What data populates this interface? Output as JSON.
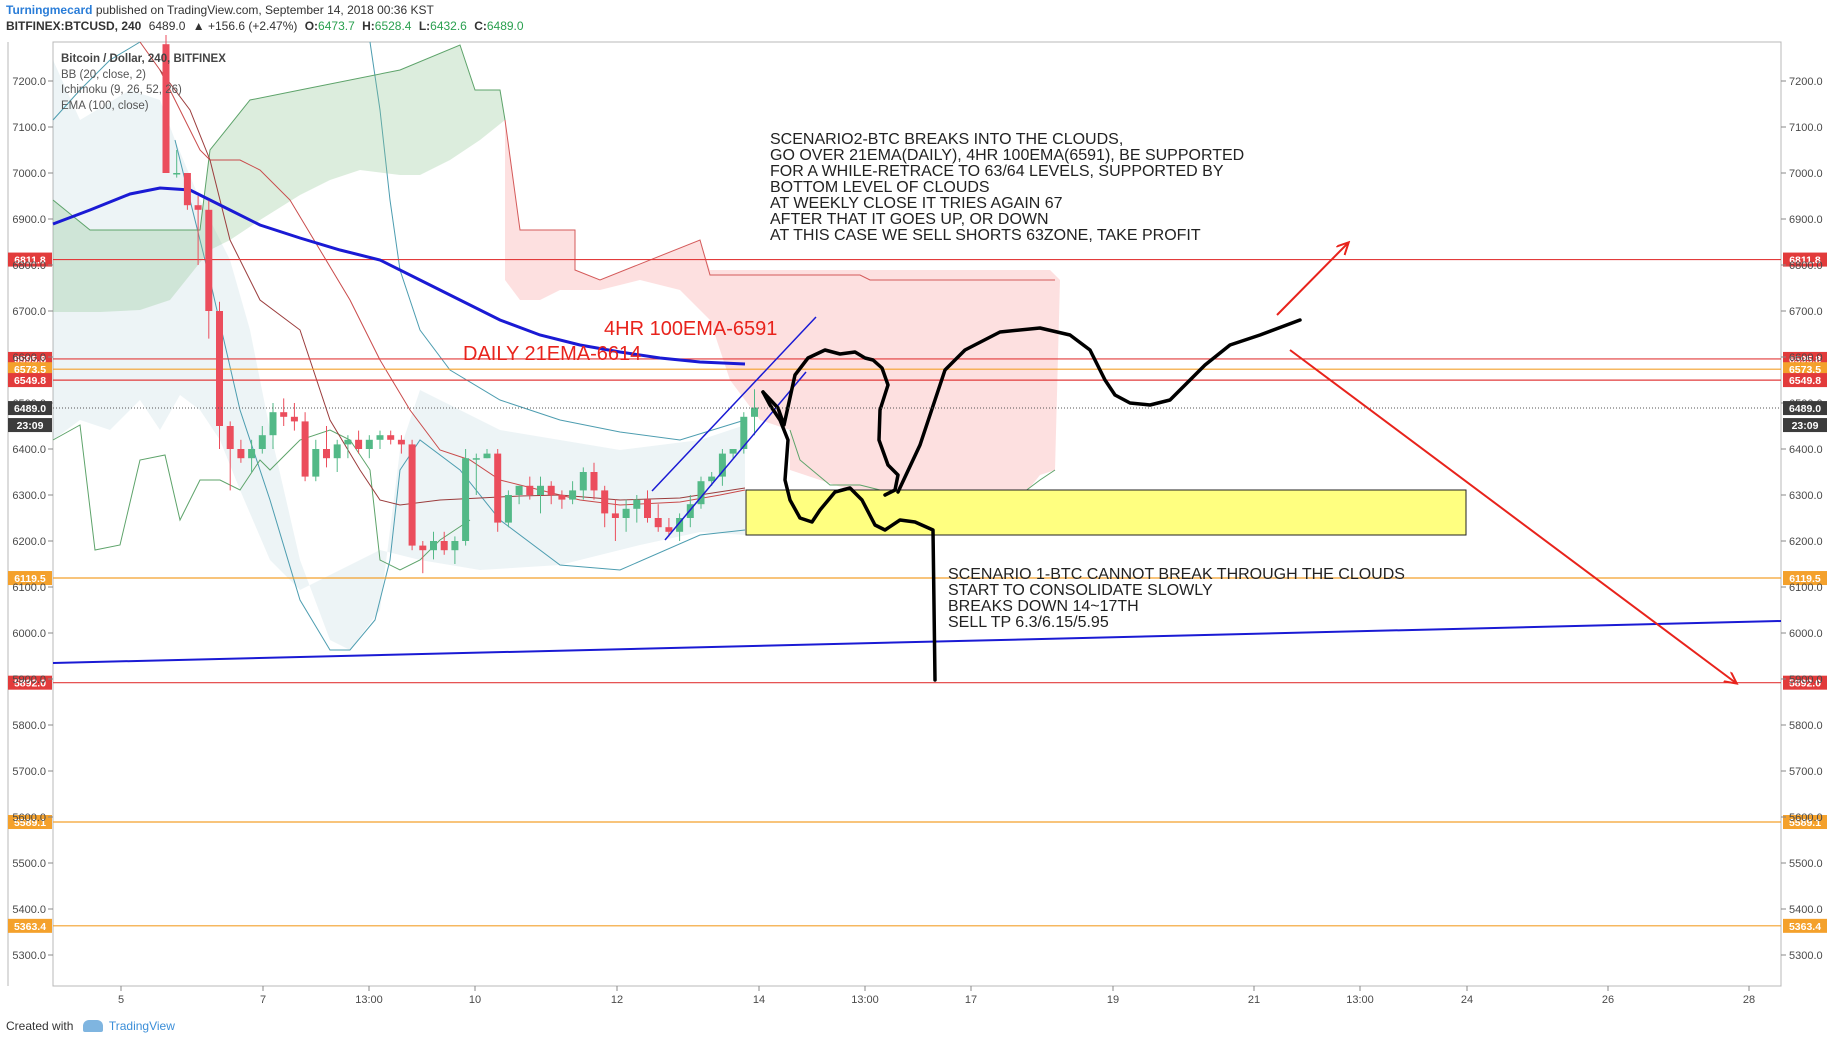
{
  "header": {
    "author": "Turningmecard",
    "published": "published on TradingView.com, September 14, 2018 00:36 KST",
    "symbol": "BITFINEX:BTCUSD, 240",
    "last": "6489.0",
    "change": "▲ +156.6 (+2.47%)",
    "o_label": "O:",
    "o": "6473.7",
    "h_label": "H:",
    "h": "6528.4",
    "l_label": "L:",
    "l": "6432.6",
    "c_label": "C:",
    "c": "6489.0"
  },
  "legend": {
    "title": "Bitcoin / Dollar, 240, BITFINEX",
    "ind1": "BB (20, close, 2)",
    "ind2": "Ichimoku (9, 26, 52, 26)",
    "ind3": "EMA (100, close)"
  },
  "footer": {
    "created_with": "Created with",
    "brand": "TradingView"
  },
  "colors": {
    "bull": "#53b987",
    "bear": "#eb4d5c",
    "ema": "#1a1ad4",
    "red_line": "#e23b3b",
    "orange_line": "#f4a12c",
    "annotation_red": "#e8231c",
    "highlight": "#ffff80"
  },
  "chart_data": {
    "type": "candlestick",
    "y_axis": {
      "ylim": [
        5240,
        7290
      ],
      "ticks": [
        "7200.0",
        "7100.0",
        "7000.0",
        "6900.0",
        "6800.0",
        "6700.0",
        "6600.0",
        "6500.0",
        "6400.0",
        "6300.0",
        "6200.0",
        "6100.0",
        "6000.0",
        "5900.0",
        "5800.0",
        "5700.0",
        "5600.0",
        "5500.0",
        "5400.0",
        "5300.0"
      ]
    },
    "x_axis": {
      "ticks": [
        "5",
        "7",
        "13:00",
        "10",
        "12",
        "14",
        "13:00",
        "17",
        "19",
        "21",
        "13:00",
        "24",
        "26",
        "28"
      ]
    },
    "price_levels": [
      {
        "value": 6811.8,
        "label": "6811.8",
        "color": "#e23b3b"
      },
      {
        "value": 6595.8,
        "label": "6595.8",
        "color": "#e23b3b"
      },
      {
        "value": 6573.5,
        "label": "6573.5",
        "color": "#f4a12c"
      },
      {
        "value": 6549.8,
        "label": "6549.8",
        "color": "#e23b3b"
      },
      {
        "value": 6119.5,
        "label": "6119.5",
        "color": "#f4a12c"
      },
      {
        "value": 5892.0,
        "label": "5892.0",
        "color": "#e23b3b"
      },
      {
        "value": 5589.1,
        "label": "5589.1",
        "color": "#f4a12c"
      },
      {
        "value": 5363.4,
        "label": "5363.4",
        "color": "#f4a12c"
      }
    ],
    "last_price": {
      "value": 6489.0,
      "label": "6489.0",
      "countdown": "23:09"
    },
    "candles": [
      [
        7280,
        7300,
        7000,
        7000
      ],
      [
        7000,
        7050,
        6990,
        7000
      ],
      [
        7000,
        7000,
        6920,
        6930
      ],
      [
        6930,
        6950,
        6800,
        6920
      ],
      [
        6920,
        6940,
        6640,
        6700
      ],
      [
        6700,
        6720,
        6400,
        6450
      ],
      [
        6450,
        6460,
        6310,
        6400
      ],
      [
        6400,
        6420,
        6370,
        6380
      ],
      [
        6380,
        6420,
        6350,
        6400
      ],
      [
        6400,
        6450,
        6390,
        6430
      ],
      [
        6430,
        6500,
        6400,
        6480
      ],
      [
        6480,
        6510,
        6450,
        6470
      ],
      [
        6470,
        6500,
        6440,
        6460
      ],
      [
        6460,
        6480,
        6330,
        6340
      ],
      [
        6340,
        6420,
        6330,
        6400
      ],
      [
        6400,
        6450,
        6360,
        6380
      ],
      [
        6380,
        6420,
        6350,
        6410
      ],
      [
        6410,
        6430,
        6380,
        6420
      ],
      [
        6420,
        6440,
        6390,
        6400
      ],
      [
        6400,
        6430,
        6380,
        6420
      ],
      [
        6420,
        6440,
        6400,
        6430
      ],
      [
        6430,
        6440,
        6410,
        6420
      ],
      [
        6420,
        6430,
        6390,
        6410
      ],
      [
        6410,
        6420,
        6180,
        6190
      ],
      [
        6190,
        6200,
        6130,
        6180
      ],
      [
        6180,
        6220,
        6160,
        6200
      ],
      [
        6200,
        6220,
        6170,
        6180
      ],
      [
        6180,
        6210,
        6150,
        6200
      ],
      [
        6200,
        6400,
        6190,
        6380
      ],
      [
        6380,
        6390,
        6300,
        6380
      ],
      [
        6380,
        6400,
        6380,
        6390
      ],
      [
        6390,
        6400,
        6220,
        6240
      ],
      [
        6240,
        6310,
        6230,
        6300
      ],
      [
        6300,
        6320,
        6280,
        6320
      ],
      [
        6320,
        6340,
        6290,
        6300
      ],
      [
        6300,
        6340,
        6260,
        6320
      ],
      [
        6320,
        6330,
        6280,
        6300
      ],
      [
        6300,
        6310,
        6270,
        6290
      ],
      [
        6290,
        6330,
        6280,
        6310
      ],
      [
        6310,
        6360,
        6290,
        6350
      ],
      [
        6350,
        6370,
        6290,
        6310
      ],
      [
        6310,
        6320,
        6230,
        6260
      ],
      [
        6260,
        6290,
        6200,
        6250
      ],
      [
        6250,
        6290,
        6220,
        6270
      ],
      [
        6270,
        6300,
        6240,
        6290
      ],
      [
        6290,
        6310,
        6240,
        6250
      ],
      [
        6250,
        6280,
        6220,
        6230
      ],
      [
        6230,
        6250,
        6210,
        6220
      ],
      [
        6220,
        6260,
        6200,
        6250
      ],
      [
        6250,
        6300,
        6230,
        6280
      ],
      [
        6280,
        6340,
        6270,
        6330
      ],
      [
        6330,
        6350,
        6320,
        6340
      ],
      [
        6340,
        6400,
        6320,
        6390
      ],
      [
        6390,
        6400,
        6380,
        6400
      ],
      [
        6400,
        6480,
        6390,
        6470
      ],
      [
        6470,
        6530,
        6430,
        6490
      ]
    ],
    "ema": {
      "name": "EMA (100, close)",
      "color": "#1a1ad4"
    },
    "annotations": {
      "scenario2": [
        "SCENARIO2-BTC BREAKS INTO THE CLOUDS,",
        "GO OVER 21EMA(DAILY), 4HR 100EMA(6591), BE SUPPORTED",
        "FOR A WHILE-RETRACE TO 63/64 LEVELS, SUPPORTED BY",
        "BOTTOM LEVEL OF CLOUDS",
        "AT WEEKLY CLOSE IT TRIES AGAIN 67",
        "AFTER THAT IT GOES UP, OR DOWN",
        "AT THIS CASE WE SELL SHORTS 63ZONE, TAKE PROFIT"
      ],
      "scenario1": [
        "SCENARIO 1-BTC CANNOT BREAK THROUGH THE CLOUDS",
        "START TO CONSOLIDATE SLOWLY",
        "BREAKS DOWN 14~17TH",
        "SELL TP 6.3/6.15/5.95"
      ],
      "ema4h": "4HR 100EMA-6591",
      "ema_daily": "DAILY 21EMA-6614"
    }
  }
}
